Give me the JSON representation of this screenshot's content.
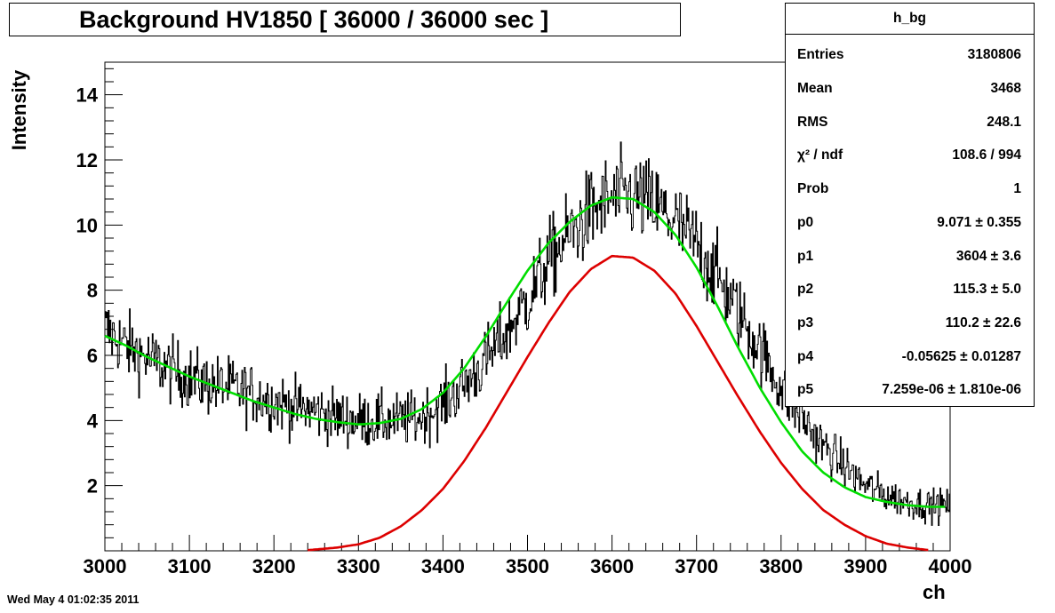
{
  "timestamp": "Wed May  4 01:02:35 2011",
  "chart_data": {
    "type": "line",
    "title": "Background HV1850 [ 36000 / 36000 sec ]",
    "xlabel": "ch",
    "ylabel": "Intensity",
    "xlim": [
      3000,
      4000
    ],
    "ylim": [
      0,
      15
    ],
    "x_ticks": [
      "3000",
      "3100",
      "3200",
      "3300",
      "3400",
      "3500",
      "3600",
      "3700",
      "3800",
      "3900",
      "4000"
    ],
    "y_ticks": [
      "2",
      "4",
      "6",
      "8",
      "10",
      "12",
      "14"
    ],
    "grid": false,
    "histogram": {
      "name": "h_bg",
      "color": "#000000",
      "x": [
        3000,
        3025,
        3050,
        3075,
        3100,
        3125,
        3150,
        3175,
        3200,
        3225,
        3250,
        3275,
        3300,
        3325,
        3350,
        3375,
        3400,
        3425,
        3450,
        3475,
        3500,
        3525,
        3550,
        3575,
        3600,
        3625,
        3650,
        3675,
        3700,
        3725,
        3750,
        3775,
        3800,
        3825,
        3850,
        3875,
        3900,
        3925,
        3950,
        3975,
        4000
      ],
      "y": [
        6.8,
        6.3,
        5.9,
        5.6,
        5.3,
        5.1,
        5.0,
        4.8,
        4.6,
        4.4,
        4.3,
        4.1,
        4.0,
        4.0,
        4.0,
        4.1,
        4.5,
        5.1,
        5.8,
        6.7,
        7.7,
        8.9,
        9.7,
        10.4,
        10.8,
        10.9,
        10.6,
        10.1,
        9.4,
        8.4,
        7.3,
        6.2,
        5.0,
        4.1,
        3.2,
        2.6,
        2.0,
        1.7,
        1.5,
        1.4,
        1.4
      ],
      "noise": 0.95
    },
    "series": [
      {
        "color": "#00dd00",
        "x": [
          3000,
          3025,
          3050,
          3075,
          3100,
          3125,
          3150,
          3175,
          3200,
          3225,
          3250,
          3275,
          3300,
          3325,
          3350,
          3375,
          3400,
          3425,
          3450,
          3475,
          3500,
          3525,
          3550,
          3575,
          3600,
          3625,
          3650,
          3675,
          3700,
          3725,
          3750,
          3775,
          3800,
          3825,
          3850,
          3875,
          3900,
          3925,
          3950,
          3975,
          3995
        ],
        "y": [
          6.6,
          6.3,
          5.95,
          5.65,
          5.35,
          5.1,
          4.85,
          4.6,
          4.4,
          4.2,
          4.05,
          3.95,
          3.88,
          3.92,
          4.05,
          4.35,
          4.85,
          5.6,
          6.55,
          7.6,
          8.6,
          9.45,
          10.1,
          10.6,
          10.85,
          10.8,
          10.4,
          9.7,
          8.7,
          7.5,
          6.2,
          5.0,
          3.95,
          3.05,
          2.4,
          1.95,
          1.65,
          1.5,
          1.4,
          1.35,
          1.35
        ]
      },
      {
        "color": "#dd0000",
        "x": [
          3240,
          3275,
          3300,
          3325,
          3350,
          3375,
          3400,
          3425,
          3450,
          3475,
          3500,
          3525,
          3550,
          3575,
          3600,
          3625,
          3650,
          3675,
          3700,
          3725,
          3750,
          3775,
          3800,
          3825,
          3850,
          3875,
          3900,
          3925,
          3950,
          3975
        ],
        "y": [
          0.02,
          0.1,
          0.2,
          0.4,
          0.75,
          1.25,
          1.9,
          2.75,
          3.75,
          4.85,
          5.95,
          7.0,
          7.95,
          8.65,
          9.05,
          9.0,
          8.6,
          7.9,
          6.9,
          5.8,
          4.7,
          3.65,
          2.7,
          1.9,
          1.25,
          0.8,
          0.45,
          0.22,
          0.1,
          0.02
        ]
      }
    ]
  },
  "stats": {
    "name": "h_bg",
    "rows": [
      {
        "name": "Entries",
        "value": "3180806"
      },
      {
        "name": "Mean",
        "value": "3468"
      },
      {
        "name": "RMS",
        "value": "248.1"
      },
      {
        "name": "χ² / ndf",
        "value": "108.6 / 994"
      },
      {
        "name": "Prob",
        "value": "1"
      },
      {
        "name": "p0",
        "value": "9.071 ± 0.355"
      },
      {
        "name": "p1",
        "value": "3604 ± 3.6"
      },
      {
        "name": "p2",
        "value": "115.3 ± 5.0"
      },
      {
        "name": "p3",
        "value": "110.2 ± 22.6"
      },
      {
        "name": "p4",
        "value": "-0.05625 ± 0.01287"
      },
      {
        "name": "p5",
        "value": "7.259e-06 ± 1.810e-06"
      }
    ]
  }
}
